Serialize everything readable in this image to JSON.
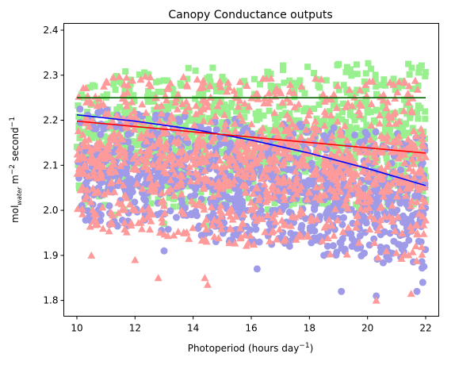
{
  "chart_data": {
    "type": "scatter",
    "title": "Canopy Conductance outputs",
    "xlabel": {
      "main": "Photoperiod (hours day",
      "sup": "−1",
      "close": ")"
    },
    "ylabel": {
      "p1": "mol",
      "sub": "water",
      "p2": " m",
      "sup1": "−2",
      "p3": " second",
      "sup2": "−1"
    },
    "xlim": [
      9.55,
      22.45
    ],
    "ylim": [
      1.765,
      2.415
    ],
    "x_ticks": [
      10,
      12,
      14,
      16,
      18,
      20,
      22
    ],
    "y_ticks": [
      1.8,
      1.9,
      2.0,
      2.1,
      2.2,
      2.3,
      2.4
    ],
    "grid": false,
    "series": [
      {
        "marker": "square",
        "color": "#98f08e",
        "x_range": [
          10,
          22
        ],
        "band": {
          "lo_start": 2.0,
          "lo_end": 2.0,
          "hi_start": 2.31,
          "hi_end": 2.33
        },
        "outliers": [
          [
            10.5,
            1.995
          ],
          [
            11.3,
            1.99
          ],
          [
            13.0,
            1.97
          ],
          [
            14.5,
            1.965
          ]
        ]
      },
      {
        "marker": "circle",
        "color": "#9f9be8",
        "x_range": [
          10,
          22
        ],
        "band": {
          "lo_start": 1.97,
          "lo_end": 1.87,
          "hi_start": 2.23,
          "hi_end": 2.17
        },
        "outliers": [
          [
            11.4,
            1.965
          ],
          [
            13.0,
            1.91
          ],
          [
            16.2,
            1.87
          ],
          [
            19.1,
            1.82
          ],
          [
            20.3,
            1.81
          ],
          [
            21.7,
            1.82
          ],
          [
            21.9,
            1.84
          ]
        ]
      },
      {
        "marker": "triangle",
        "color": "#ff9a9a",
        "x_range": [
          10,
          22
        ],
        "band": {
          "lo_start": 1.96,
          "lo_end": 1.88,
          "hi_start": 2.3,
          "hi_end": 2.29
        },
        "outliers": [
          [
            10.5,
            1.9
          ],
          [
            12.0,
            1.89
          ],
          [
            12.8,
            1.85
          ],
          [
            14.4,
            1.85
          ],
          [
            14.5,
            1.835
          ],
          [
            20.3,
            1.8
          ],
          [
            21.5,
            1.815
          ]
        ]
      }
    ],
    "fit_lines": [
      {
        "color": "#006400",
        "x": [
          10.0,
          22.0
        ],
        "y": [
          2.25,
          2.25
        ]
      },
      {
        "color": "#0000ff",
        "x": [
          10.0,
          12.0,
          14.0,
          16.0,
          18.0,
          20.0,
          22.0
        ],
        "y": [
          2.212,
          2.198,
          2.18,
          2.156,
          2.127,
          2.093,
          2.055
        ]
      },
      {
        "color": "#ff0000",
        "x": [
          10.0,
          22.0
        ],
        "y": [
          2.198,
          2.127
        ]
      }
    ]
  }
}
